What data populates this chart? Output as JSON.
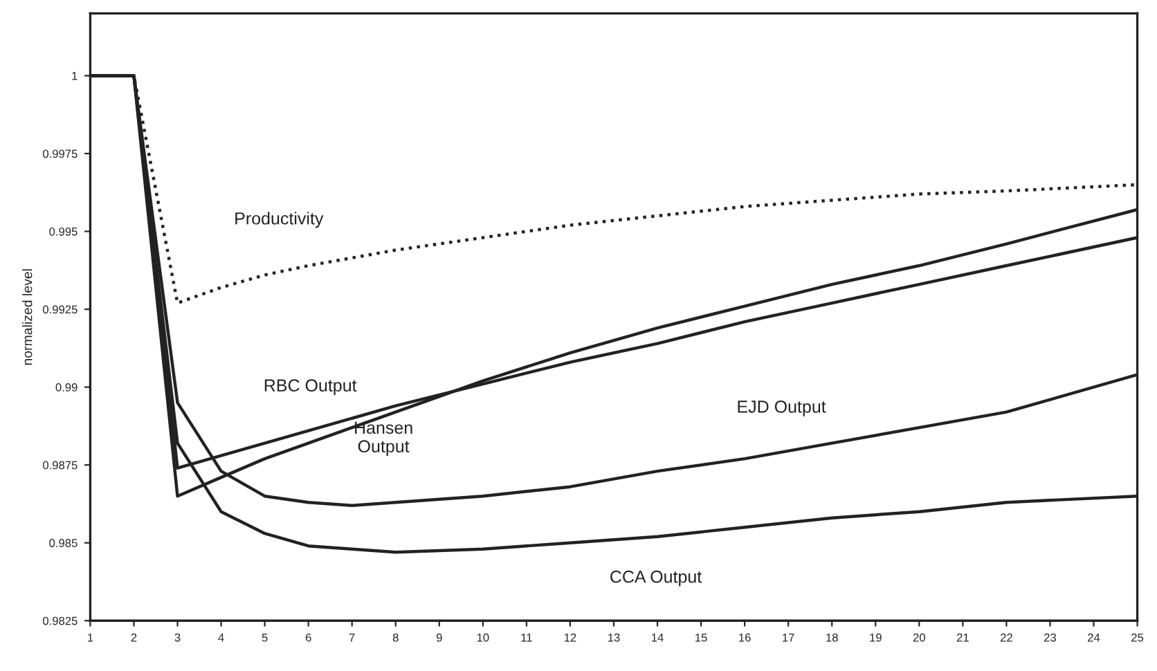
{
  "chart_data": {
    "type": "line",
    "ylabel": "normalized level",
    "xlim": [
      1,
      25
    ],
    "xticks": [
      1,
      2,
      3,
      4,
      5,
      6,
      7,
      8,
      9,
      10,
      11,
      12,
      13,
      14,
      15,
      16,
      17,
      18,
      19,
      20,
      21,
      22,
      23,
      24,
      25
    ],
    "ylim": [
      0.9825,
      1.002
    ],
    "yticks": [
      0.9825,
      0.985,
      0.9875,
      0.99,
      0.9925,
      0.995,
      0.9975,
      1
    ],
    "grid": false,
    "legend": false,
    "marker": "none",
    "series": [
      {
        "name": "Productivity",
        "color": "#222222",
        "line_style": "dotted",
        "x": [
          1,
          2,
          3,
          4,
          5,
          6,
          8,
          10,
          12,
          14,
          16,
          18,
          20,
          22,
          25
        ],
        "values": [
          1,
          1,
          0.9927,
          0.9932,
          0.9936,
          0.9939,
          0.9944,
          0.9948,
          0.9952,
          0.9955,
          0.9958,
          0.996,
          0.9962,
          0.9963,
          0.9965
        ]
      },
      {
        "name": "RBC Output",
        "color": "#222222",
        "line_style": "solid",
        "x": [
          1,
          2,
          3,
          4,
          5,
          6,
          8,
          10,
          12,
          14,
          16,
          18,
          20,
          22,
          25
        ],
        "values": [
          1,
          1,
          0.9874,
          0.9878,
          0.9882,
          0.9886,
          0.9894,
          0.9901,
          0.9908,
          0.9914,
          0.9921,
          0.9927,
          0.9933,
          0.9939,
          0.9948
        ]
      },
      {
        "name": "Hansen\nOutput",
        "color": "#222222",
        "line_style": "solid",
        "x": [
          1,
          2,
          3,
          4,
          5,
          6,
          8,
          10,
          12,
          14,
          16,
          18,
          20,
          22,
          25
        ],
        "values": [
          1,
          1,
          0.9865,
          0.9871,
          0.9877,
          0.9882,
          0.9892,
          0.9902,
          0.9911,
          0.9919,
          0.9926,
          0.9933,
          0.9939,
          0.9946,
          0.9957
        ]
      },
      {
        "name": "EJD Output",
        "color": "#222222",
        "line_style": "solid",
        "x": [
          1,
          2,
          3,
          4,
          5,
          6,
          7,
          8,
          10,
          12,
          14,
          16,
          18,
          20,
          22,
          25
        ],
        "values": [
          1,
          1,
          0.9895,
          0.9873,
          0.9865,
          0.9863,
          0.9862,
          0.9863,
          0.9865,
          0.9868,
          0.9873,
          0.9877,
          0.9882,
          0.9887,
          0.9892,
          0.9904
        ]
      },
      {
        "name": "CCA Output",
        "color": "#222222",
        "line_style": "solid",
        "x": [
          1,
          2,
          3,
          4,
          5,
          6,
          7,
          8,
          10,
          12,
          14,
          16,
          18,
          20,
          22,
          25
        ],
        "values": [
          1,
          1,
          0.9882,
          0.986,
          0.9853,
          0.9849,
          0.9848,
          0.9847,
          0.9848,
          0.985,
          0.9852,
          0.9855,
          0.9858,
          0.986,
          0.9863,
          0.9865
        ]
      }
    ]
  }
}
